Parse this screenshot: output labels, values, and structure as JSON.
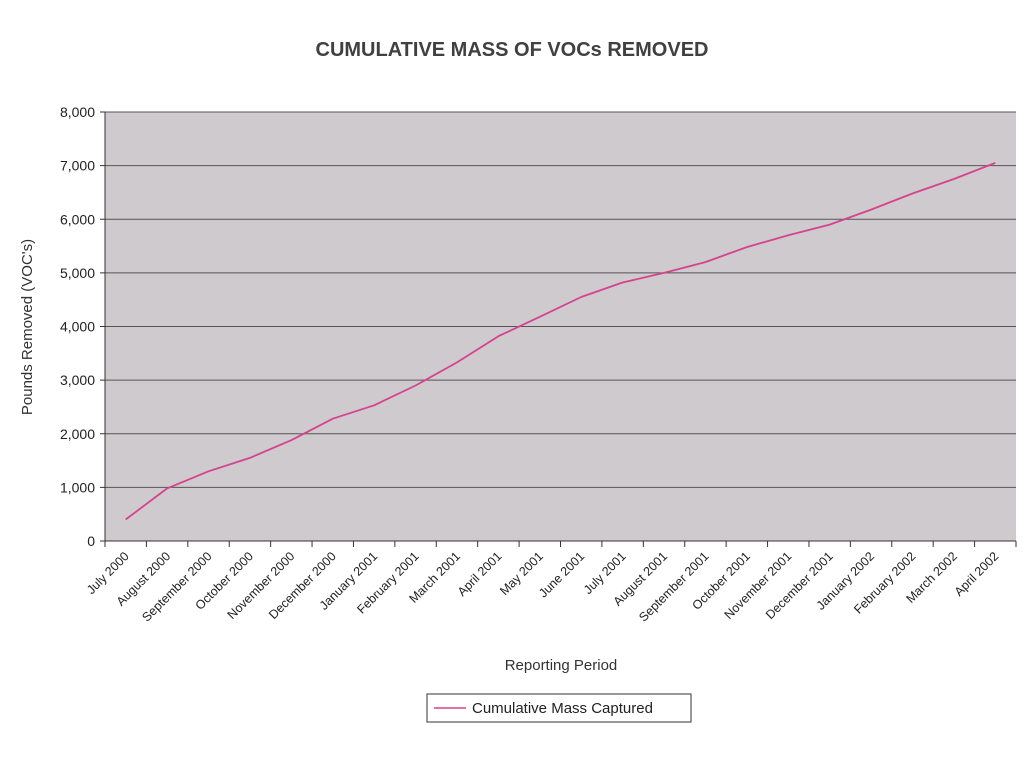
{
  "chart_data": {
    "type": "line",
    "title": "CUMULATIVE MASS OF VOCs  REMOVED",
    "xlabel": "Reporting Period",
    "ylabel": "Pounds Removed (VOC's)",
    "ylim": [
      0,
      8000
    ],
    "y_ticks": [
      "0",
      "1,000",
      "2,000",
      "3,000",
      "4,000",
      "5,000",
      "6,000",
      "7,000",
      "8,000"
    ],
    "y_tick_values": [
      0,
      1000,
      2000,
      3000,
      4000,
      5000,
      6000,
      7000,
      8000
    ],
    "grid": true,
    "legend_position": "bottom",
    "colors": {
      "series": "#d5438f",
      "plot_background": "#cfcace",
      "grid": "#555555"
    },
    "categories": [
      "July 2000",
      "August 2000",
      "September 2000",
      "October 2000",
      "November 2000",
      "December 2000",
      "January 2001",
      "February 2001",
      "March 2001",
      "April 2001",
      "May 2001",
      "June 2001",
      "July 2001",
      "August 2001",
      "September 2001",
      "October 2001",
      "November 2001",
      "December 2001",
      "January 2002",
      "February 2002",
      "March 2002",
      "April 2002"
    ],
    "series": [
      {
        "name": "Cumulative Mass Captured",
        "x": [
          "July 2000",
          "August 2000",
          "September 2000",
          "October 2000",
          "November 2000",
          "December 2000",
          "January 2001",
          "February 2001",
          "March 2001",
          "April 2001",
          "May 2001",
          "June 2001",
          "July 2001",
          "August 2001",
          "September 2001",
          "October 2001",
          "November 2001",
          "December 2001",
          "January 2002",
          "February 2002",
          "March 2002",
          "April 2002"
        ],
        "values": [
          400,
          980,
          1300,
          1550,
          1880,
          2280,
          2530,
          2900,
          3330,
          3820,
          4180,
          4550,
          4820,
          5000,
          5200,
          5480,
          5700,
          5900,
          6180,
          6480,
          6750,
          7050
        ]
      }
    ]
  }
}
